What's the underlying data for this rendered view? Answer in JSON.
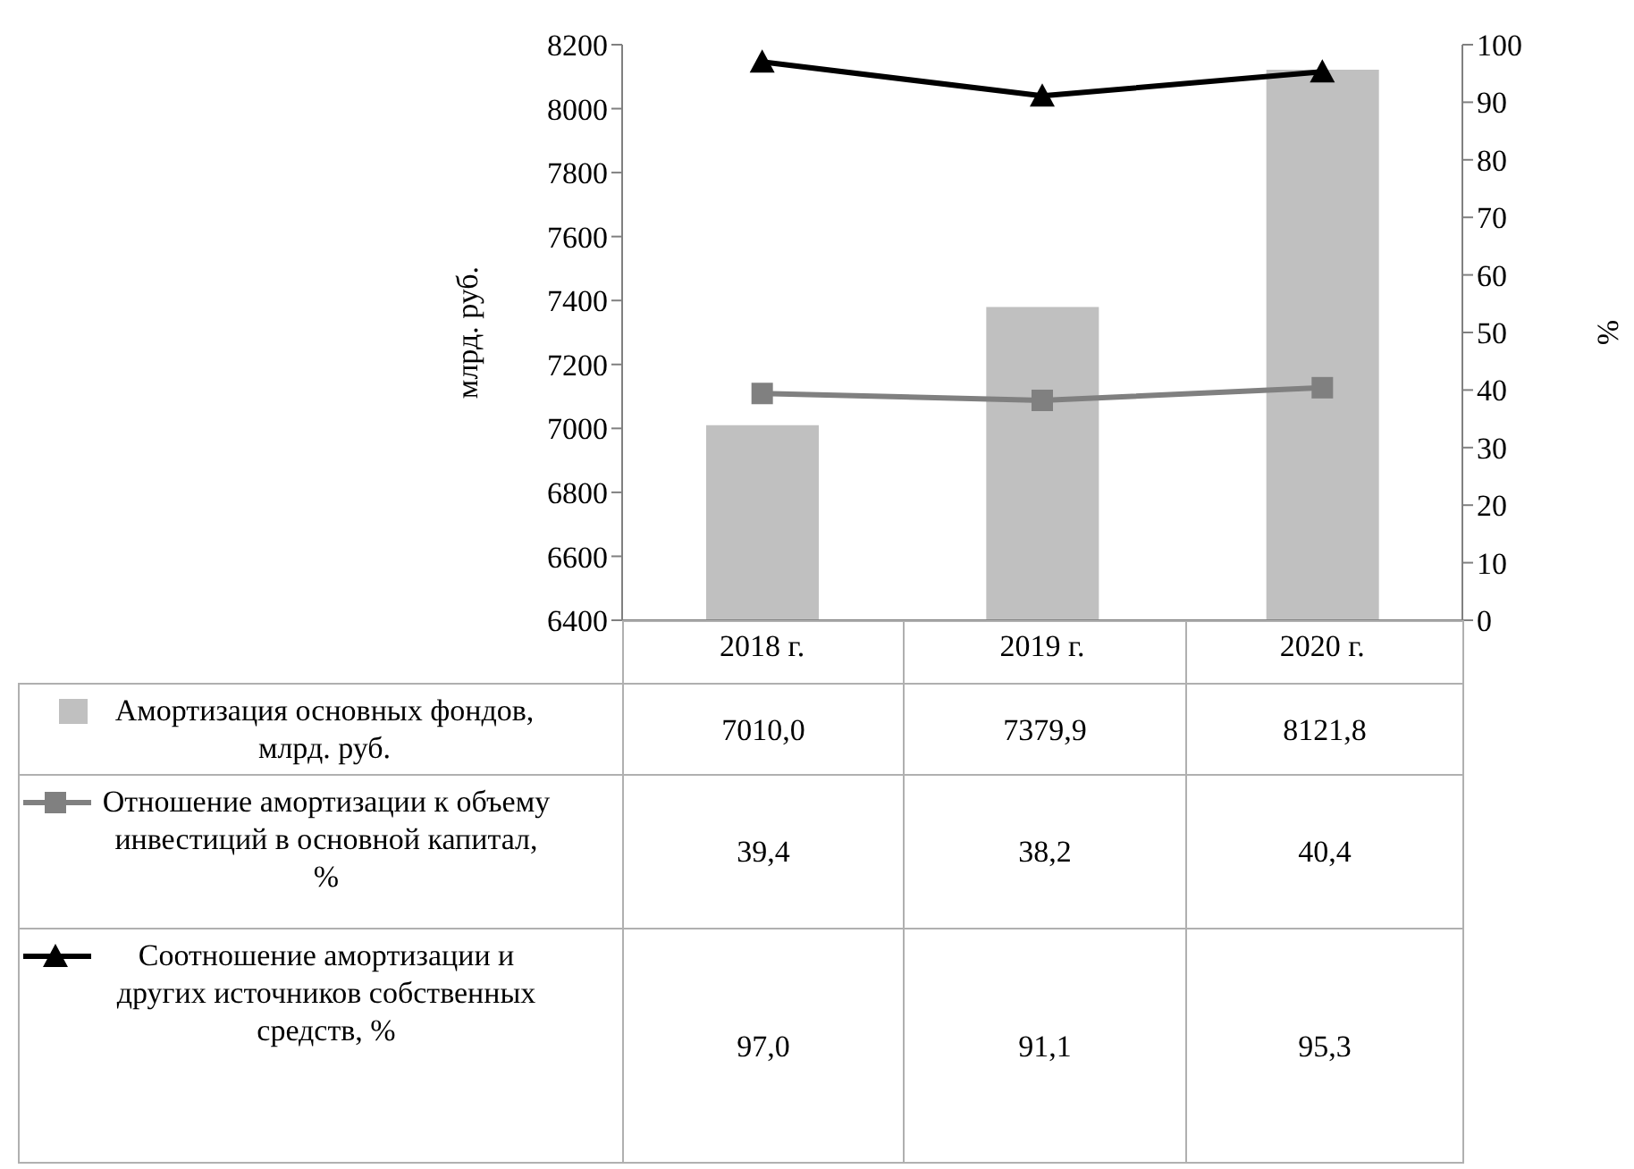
{
  "chart_data": {
    "type": "bar",
    "ylabel": "млрд. руб.",
    "y2label": "%",
    "categories": [
      "2018 г.",
      "2019 г.",
      "2020 г."
    ],
    "ylim": [
      6400,
      8200
    ],
    "yticks": [
      6400,
      6600,
      6800,
      7000,
      7200,
      7400,
      7600,
      7800,
      8000,
      8200
    ],
    "y2lim": [
      0,
      100
    ],
    "y2ticks": [
      0,
      10,
      20,
      30,
      40,
      50,
      60,
      70,
      80,
      90,
      100
    ],
    "grid": false,
    "legend": "bottom",
    "series": [
      {
        "name": "Амортизация основных фондов, млрд. руб.",
        "color": "#c0c0c0",
        "values": [
          7010.0,
          7379.9,
          8121.8
        ],
        "value_labels": [
          "7010,0",
          "7379,9",
          "8121,8"
        ]
      },
      {
        "name": "Отношение амортизации к объему инвестиций в основной капитал, %",
        "type": "line",
        "axis": "y2",
        "color": "#808080",
        "marker": "square",
        "values": [
          39.4,
          38.2,
          40.4
        ],
        "value_labels": [
          "39,4",
          "38,2",
          "40,4"
        ]
      },
      {
        "name": "Соотношение амортизации и других источников собственных средств, %",
        "type": "line",
        "axis": "y2",
        "color": "#000000",
        "marker": "triangle",
        "values": [
          97.0,
          91.1,
          95.3
        ],
        "value_labels": [
          "97,0",
          "91,1",
          "95,3"
        ]
      }
    ]
  }
}
